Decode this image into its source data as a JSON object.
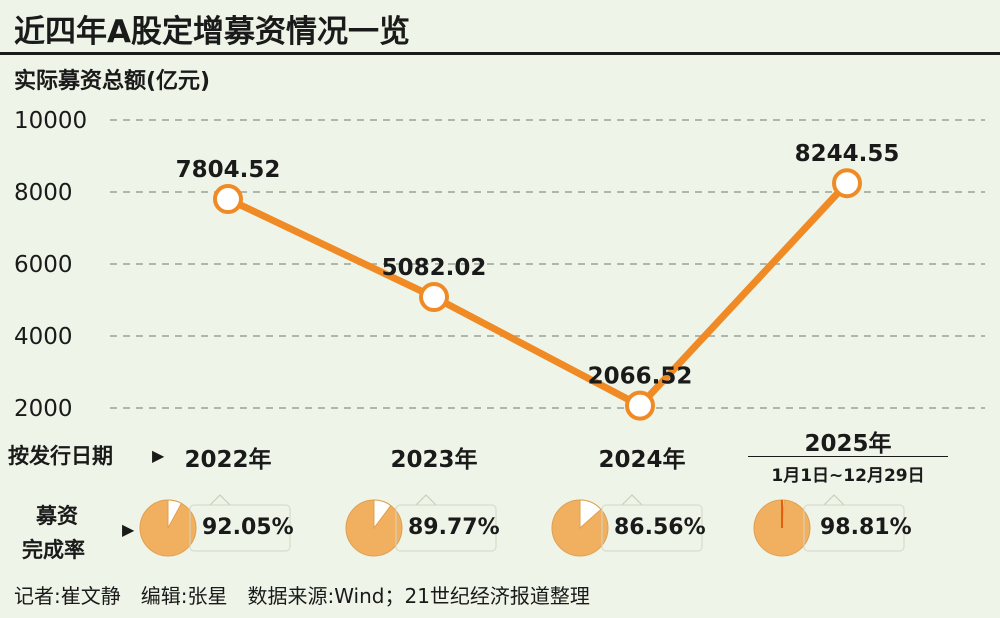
{
  "title": "近四年A股定增募资情况一览",
  "colors": {
    "line": "#f08a24",
    "pie_fill": "#f0b060",
    "pie_slice": "#ffffff",
    "background": "#eef4e8"
  },
  "chart_data": {
    "type": "line",
    "ylabel": "实际募资总额(亿元)",
    "y_ticks": [
      "10000",
      "8000",
      "6000",
      "4000",
      "2000"
    ],
    "ylim": [
      2000,
      10000
    ],
    "grid": true,
    "categories": [
      "2022年",
      "2023年",
      "2024年",
      "2025年"
    ],
    "values": [
      7804.52,
      5082.02,
      2066.52,
      8244.55
    ],
    "data_labels": [
      "7804.52",
      "5082.02",
      "2066.52",
      "8244.55"
    ]
  },
  "x_row": {
    "label": "按发行日期",
    "years": [
      "2022年",
      "2023年",
      "2024年",
      "2025年"
    ],
    "last_year_note": "1月1日~12月29日"
  },
  "completion": {
    "label_line1": "募资",
    "label_line2": "完成率",
    "rates_text": [
      "92.05%",
      "89.77%",
      "86.56%",
      "98.81%"
    ],
    "rates": [
      92.05,
      89.77,
      86.56,
      98.81
    ]
  },
  "footer": "记者:崔文静　编辑:张星　数据来源:Wind；21世纪经济报道整理"
}
